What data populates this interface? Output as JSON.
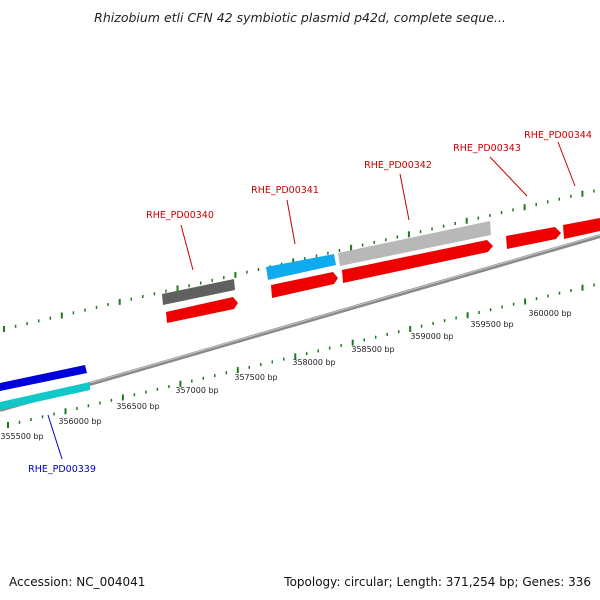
{
  "title": "Rhizobium etli CFN 42 symbiotic plasmid p42d, complete seque...",
  "footer": {
    "accession": "Accession: NC_004041",
    "summary": "Topology: circular; Length: 371,254 bp; Genes: 336"
  },
  "colors": {
    "backbone": "#8a8a8a",
    "tick": "#1e7a1e",
    "label_red": "#cc0000",
    "label_blue": "#0000cc"
  },
  "scale_ticks": [
    {
      "label": "355500 bp",
      "value": 355500
    },
    {
      "label": "356000 bp",
      "value": 356000
    },
    {
      "label": "356500 bp",
      "value": 356500
    },
    {
      "label": "357000 bp",
      "value": 357000
    },
    {
      "label": "357500 bp",
      "value": 357500
    },
    {
      "label": "358000 bp",
      "value": 358000
    },
    {
      "label": "358500 bp",
      "value": 358500
    },
    {
      "label": "359000 bp",
      "value": 359000
    },
    {
      "label": "359500 bp",
      "value": 359500
    },
    {
      "label": "360000 bp",
      "value": 360000
    }
  ],
  "gene_labels": [
    {
      "name": "RHE_PD00339",
      "color": "#0000cc"
    },
    {
      "name": "RHE_PD00340",
      "color": "#cc0000"
    },
    {
      "name": "RHE_PD00341",
      "color": "#cc0000"
    },
    {
      "name": "RHE_PD00342",
      "color": "#cc0000"
    },
    {
      "name": "RHE_PD00343",
      "color": "#cc0000"
    },
    {
      "name": "RHE_PD00344",
      "color": "#cc0000"
    }
  ],
  "features": [
    {
      "kind": "gene",
      "color": "#0000dd"
    },
    {
      "kind": "cds",
      "color": "#10c8c8"
    },
    {
      "kind": "gene",
      "color": "#606060"
    },
    {
      "kind": "cds",
      "color": "#ee0000"
    },
    {
      "kind": "gene",
      "color": "#10aaee"
    },
    {
      "kind": "cds",
      "color": "#ee0000"
    },
    {
      "kind": "gene",
      "color": "#b8b8b8"
    },
    {
      "kind": "cds",
      "color": "#ee0000"
    },
    {
      "kind": "cds",
      "color": "#ee0000"
    },
    {
      "kind": "cds",
      "color": "#ee0000"
    }
  ]
}
